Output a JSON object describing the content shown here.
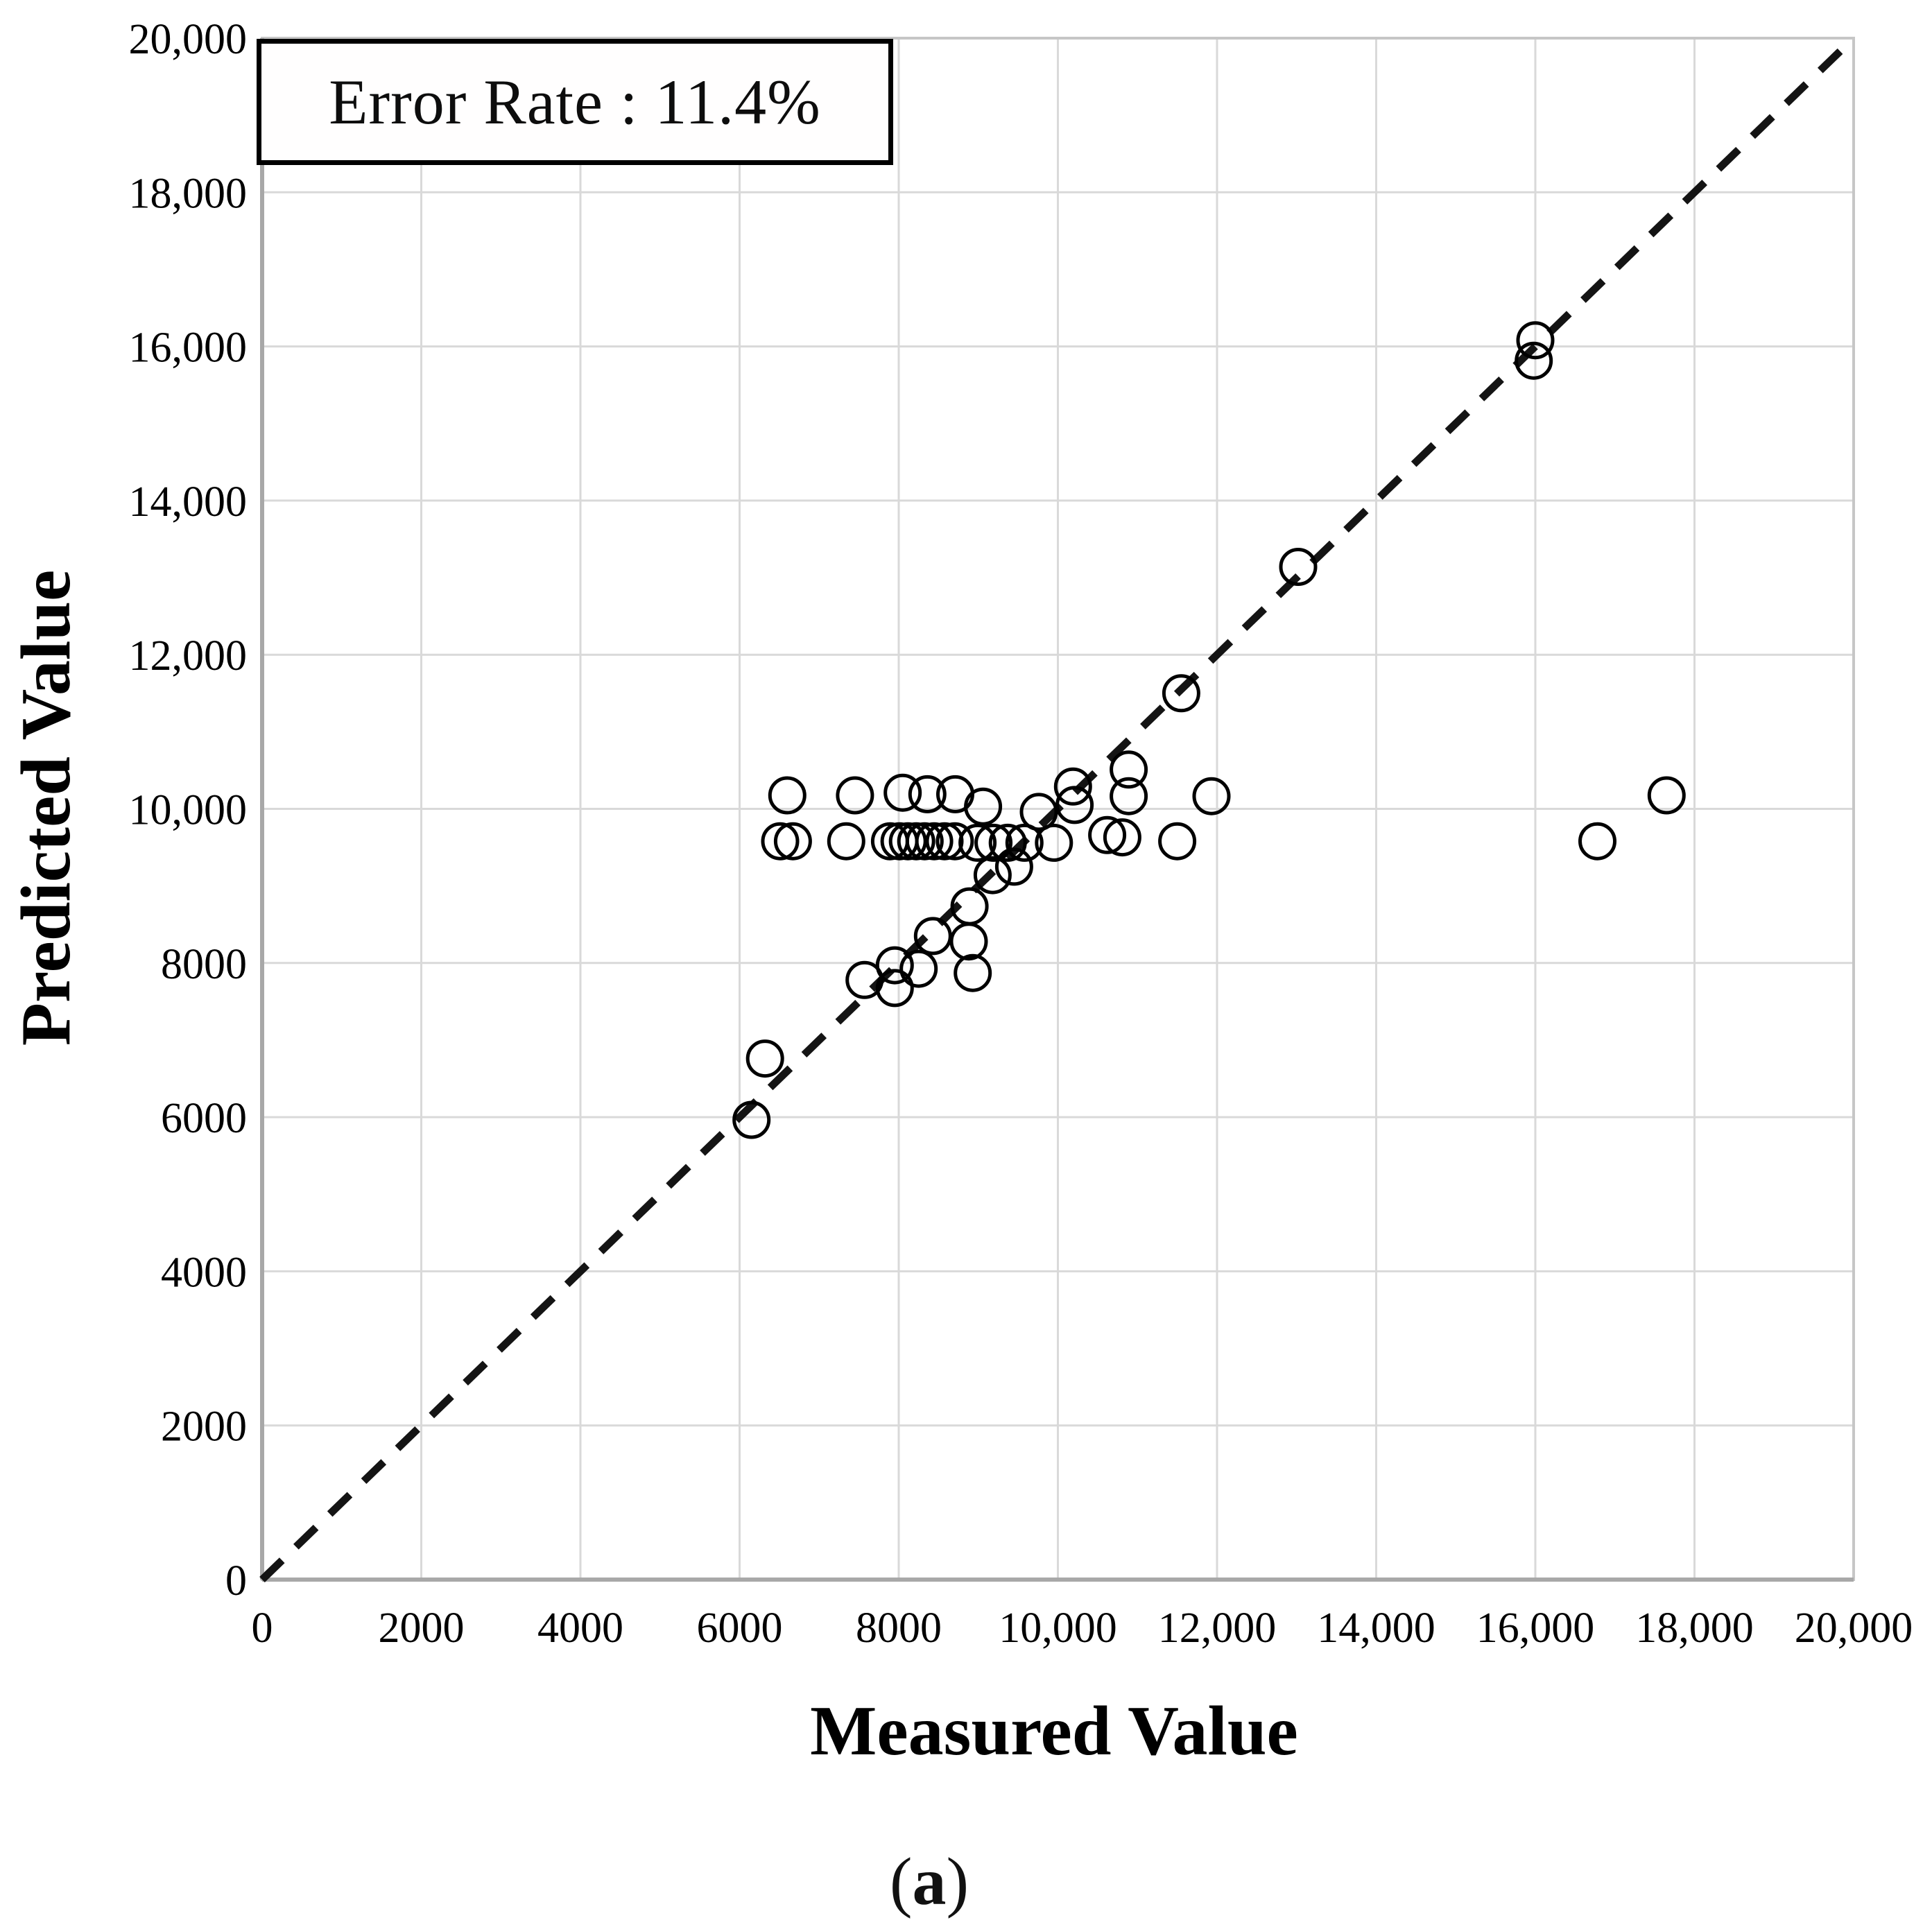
{
  "figure": {
    "caption": "(a)"
  },
  "chart_data": {
    "type": "scatter",
    "title": "",
    "xlabel": "Measured Value",
    "ylabel": "Predicted Value",
    "xlim": [
      0,
      20000
    ],
    "ylim": [
      0,
      20000
    ],
    "grid": true,
    "legend": "none",
    "annotation": {
      "text": "Error Rate : 11.4%",
      "position": "top-left"
    },
    "identity_line": {
      "style": "dashed",
      "from": [
        0,
        0
      ],
      "to": [
        20000,
        20000
      ]
    },
    "x_ticks": [
      {
        "value": 0,
        "label": "0"
      },
      {
        "value": 2000,
        "label": "2000"
      },
      {
        "value": 4000,
        "label": "4000"
      },
      {
        "value": 6000,
        "label": "6000"
      },
      {
        "value": 8000,
        "label": "8000"
      },
      {
        "value": 10000,
        "label": "10,000"
      },
      {
        "value": 12000,
        "label": "12,000"
      },
      {
        "value": 14000,
        "label": "14,000"
      },
      {
        "value": 16000,
        "label": "16,000"
      },
      {
        "value": 18000,
        "label": "18,000"
      },
      {
        "value": 20000,
        "label": "20,000"
      }
    ],
    "y_ticks": [
      {
        "value": 0,
        "label": "0"
      },
      {
        "value": 2000,
        "label": "2000"
      },
      {
        "value": 4000,
        "label": "4000"
      },
      {
        "value": 6000,
        "label": "6000"
      },
      {
        "value": 8000,
        "label": "8000"
      },
      {
        "value": 10000,
        "label": "10,000"
      },
      {
        "value": 12000,
        "label": "12,000"
      },
      {
        "value": 14000,
        "label": "14,000"
      },
      {
        "value": 16000,
        "label": "16,000"
      },
      {
        "value": 18000,
        "label": "18,000"
      },
      {
        "value": 20000,
        "label": "20,000"
      }
    ],
    "points": [
      [
        6150,
        5965
      ],
      [
        6320,
        6760
      ],
      [
        7570,
        7780
      ],
      [
        7950,
        7970
      ],
      [
        7950,
        7675
      ],
      [
        8250,
        7925
      ],
      [
        8430,
        8350
      ],
      [
        8880,
        8280
      ],
      [
        8930,
        7870
      ],
      [
        8890,
        8735
      ],
      [
        9180,
        9140
      ],
      [
        9450,
        9250
      ],
      [
        6510,
        9580
      ],
      [
        6670,
        9580
      ],
      [
        7340,
        9580
      ],
      [
        7890,
        9580
      ],
      [
        8010,
        9580
      ],
      [
        8115,
        9580
      ],
      [
        8220,
        9580
      ],
      [
        8325,
        9580
      ],
      [
        8445,
        9580
      ],
      [
        8575,
        9580
      ],
      [
        8705,
        9580
      ],
      [
        8990,
        9560
      ],
      [
        9190,
        9560
      ],
      [
        9370,
        9560
      ],
      [
        9580,
        9560
      ],
      [
        9950,
        9560
      ],
      [
        10620,
        9660
      ],
      [
        10810,
        9630
      ],
      [
        11500,
        9580
      ],
      [
        16780,
        9580
      ],
      [
        6600,
        10175
      ],
      [
        7450,
        10175
      ],
      [
        8050,
        10210
      ],
      [
        8360,
        10190
      ],
      [
        8710,
        10190
      ],
      [
        9060,
        10030
      ],
      [
        9760,
        9960
      ],
      [
        10190,
        10290
      ],
      [
        10210,
        10050
      ],
      [
        10890,
        10165
      ],
      [
        11930,
        10165
      ],
      [
        17650,
        10175
      ],
      [
        10890,
        10510
      ],
      [
        11550,
        11500
      ],
      [
        13020,
        13140
      ],
      [
        15980,
        15815
      ],
      [
        16000,
        16080
      ]
    ],
    "style": {
      "marker": "open-circle",
      "marker_color": "#000000",
      "marker_radius": 25,
      "marker_stroke": 5,
      "grid_color": "#d9d9d9",
      "border_color": "#c6c6c6",
      "axis_color": "#a8a8a8",
      "dash_color": "#141414"
    }
  }
}
